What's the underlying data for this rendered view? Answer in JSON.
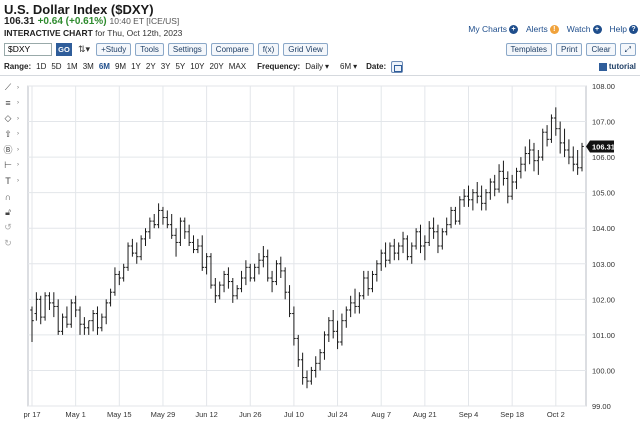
{
  "header": {
    "title": "U.S. Dollar Index ($DXY)",
    "last": "106.31",
    "change": "+0.64 (+0.61%)",
    "time": "10:40 ET [ICE/US]",
    "subtitle_bold": "INTERACTIVE CHART",
    "subtitle_date": "for Thu, Oct 12th, 2023",
    "links": {
      "my_charts": "My Charts",
      "alerts": "Alerts",
      "watch": "Watch",
      "help": "Help"
    }
  },
  "toolbar": {
    "symbol": "$DXY",
    "go": "GO",
    "study": "+Study",
    "tools": "Tools",
    "settings": "Settings",
    "compare": "Compare",
    "fx": "f(x)",
    "grid_view": "Grid View",
    "templates": "Templates",
    "print": "Print",
    "clear": "Clear"
  },
  "range": {
    "label": "Range:",
    "options": [
      "1D",
      "5D",
      "1M",
      "3M",
      "6M",
      "9M",
      "1Y",
      "2Y",
      "3Y",
      "5Y",
      "10Y",
      "20Y",
      "MAX"
    ],
    "active": "6M",
    "frequency_label": "Frequency:",
    "frequency": "Daily",
    "period": "6M",
    "date_label": "Date:",
    "tutorial": "tutorial"
  },
  "chart_data": {
    "type": "ohlc",
    "current_price_label": "106.31",
    "ylim": [
      99.0,
      108.0
    ],
    "y_ticks": [
      "99.00",
      "100.00",
      "101.00",
      "102.00",
      "103.00",
      "104.00",
      "105.00",
      "106.00",
      "107.00",
      "108.00"
    ],
    "x_tick_labels": [
      "pr 17",
      "May 1",
      "May 15",
      "May 29",
      "Jun 12",
      "Jun 26",
      "Jul 10",
      "Jul 24",
      "Aug 7",
      "Aug 21",
      "Sep 4",
      "Sep 18",
      "Oct 2"
    ],
    "x_tick_index": [
      0,
      10,
      20,
      30,
      40,
      50,
      60,
      70,
      80,
      90,
      100,
      110,
      120
    ],
    "bars": [
      [
        101.7,
        101.8,
        100.8,
        101.4
      ],
      [
        101.6,
        102.2,
        101.4,
        102.0
      ],
      [
        102.0,
        102.1,
        101.3,
        101.5
      ],
      [
        101.5,
        102.2,
        101.4,
        102.1
      ],
      [
        102.1,
        102.2,
        101.7,
        101.9
      ],
      [
        101.9,
        102.2,
        101.5,
        101.8
      ],
      [
        101.8,
        102.0,
        101.0,
        101.1
      ],
      [
        101.1,
        101.6,
        101.0,
        101.5
      ],
      [
        101.5,
        101.8,
        101.2,
        101.3
      ],
      [
        101.3,
        102.0,
        101.2,
        101.9
      ],
      [
        101.9,
        102.1,
        101.5,
        101.7
      ],
      [
        101.7,
        101.8,
        101.0,
        101.3
      ],
      [
        101.3,
        101.5,
        101.0,
        101.2
      ],
      [
        101.2,
        101.4,
        101.0,
        101.4
      ],
      [
        101.4,
        101.7,
        101.1,
        101.6
      ],
      [
        101.6,
        101.8,
        101.0,
        101.2
      ],
      [
        101.2,
        101.6,
        101.1,
        101.5
      ],
      [
        101.5,
        102.0,
        101.3,
        101.9
      ],
      [
        101.9,
        102.3,
        101.8,
        102.2
      ],
      [
        102.2,
        102.9,
        102.1,
        102.7
      ],
      [
        102.7,
        102.8,
        102.4,
        102.6
      ],
      [
        102.6,
        103.0,
        102.5,
        102.9
      ],
      [
        102.9,
        103.6,
        102.8,
        103.5
      ],
      [
        103.5,
        103.7,
        103.2,
        103.3
      ],
      [
        103.3,
        103.6,
        103.0,
        103.2
      ],
      [
        103.2,
        103.8,
        103.1,
        103.7
      ],
      [
        103.7,
        104.0,
        103.5,
        103.9
      ],
      [
        103.9,
        104.3,
        103.7,
        104.2
      ],
      [
        104.2,
        104.4,
        104.0,
        104.1
      ],
      [
        104.1,
        104.7,
        104.0,
        104.5
      ],
      [
        104.5,
        104.6,
        104.1,
        104.3
      ],
      [
        104.3,
        104.5,
        104.0,
        104.1
      ],
      [
        104.1,
        104.4,
        103.7,
        103.8
      ],
      [
        103.8,
        104.0,
        103.2,
        103.6
      ],
      [
        103.6,
        104.3,
        103.5,
        104.2
      ],
      [
        104.2,
        104.3,
        103.7,
        103.9
      ],
      [
        103.9,
        104.1,
        103.5,
        103.6
      ],
      [
        103.6,
        103.8,
        103.3,
        103.4
      ],
      [
        103.4,
        103.7,
        103.3,
        103.5
      ],
      [
        103.5,
        103.8,
        102.8,
        102.9
      ],
      [
        102.9,
        103.3,
        102.7,
        103.2
      ],
      [
        103.2,
        103.3,
        102.3,
        102.4
      ],
      [
        102.4,
        102.6,
        101.9,
        102.1
      ],
      [
        102.1,
        102.5,
        102.0,
        102.4
      ],
      [
        102.4,
        102.8,
        102.2,
        102.7
      ],
      [
        102.7,
        102.9,
        102.3,
        102.5
      ],
      [
        102.5,
        102.6,
        101.9,
        102.1
      ],
      [
        102.1,
        102.4,
        102.0,
        102.3
      ],
      [
        102.3,
        102.8,
        102.2,
        102.6
      ],
      [
        102.6,
        103.1,
        102.4,
        102.9
      ],
      [
        102.9,
        103.0,
        102.5,
        102.6
      ],
      [
        102.6,
        103.0,
        102.5,
        102.9
      ],
      [
        102.9,
        103.3,
        102.7,
        103.1
      ],
      [
        103.1,
        103.5,
        102.9,
        103.2
      ],
      [
        103.2,
        103.4,
        102.5,
        102.6
      ],
      [
        102.6,
        102.8,
        102.2,
        102.5
      ],
      [
        102.5,
        103.1,
        102.4,
        103.0
      ],
      [
        103.0,
        103.2,
        102.6,
        102.8
      ],
      [
        102.8,
        102.9,
        102.0,
        102.2
      ],
      [
        102.2,
        102.4,
        101.5,
        101.6
      ],
      [
        101.6,
        101.8,
        100.7,
        100.9
      ],
      [
        100.9,
        101.0,
        100.1,
        100.3
      ],
      [
        100.3,
        100.5,
        99.6,
        99.8
      ],
      [
        99.8,
        100.0,
        99.5,
        99.7
      ],
      [
        99.7,
        100.1,
        99.6,
        100.0
      ],
      [
        100.0,
        100.4,
        99.8,
        100.2
      ],
      [
        100.2,
        100.6,
        100.0,
        100.5
      ],
      [
        100.5,
        101.1,
        100.3,
        101.0
      ],
      [
        101.0,
        101.5,
        100.8,
        101.4
      ],
      [
        101.4,
        101.7,
        100.9,
        101.1
      ],
      [
        101.1,
        101.4,
        100.6,
        100.8
      ],
      [
        100.8,
        101.6,
        100.7,
        101.4
      ],
      [
        101.4,
        101.8,
        101.2,
        101.7
      ],
      [
        101.7,
        102.1,
        101.5,
        101.9
      ],
      [
        101.9,
        102.3,
        101.6,
        101.8
      ],
      [
        101.8,
        102.2,
        101.6,
        102.1
      ],
      [
        102.1,
        102.8,
        102.0,
        102.6
      ],
      [
        102.6,
        102.8,
        102.1,
        102.3
      ],
      [
        102.3,
        102.8,
        102.2,
        102.7
      ],
      [
        102.7,
        103.1,
        102.5,
        103.0
      ],
      [
        103.0,
        103.4,
        102.8,
        103.3
      ],
      [
        103.3,
        103.6,
        102.9,
        103.1
      ],
      [
        103.1,
        103.6,
        103.0,
        103.5
      ],
      [
        103.5,
        103.7,
        103.1,
        103.3
      ],
      [
        103.3,
        103.6,
        103.1,
        103.5
      ],
      [
        103.5,
        103.9,
        103.3,
        103.7
      ],
      [
        103.7,
        103.8,
        103.1,
        103.2
      ],
      [
        103.2,
        103.6,
        103.0,
        103.5
      ],
      [
        103.5,
        104.0,
        103.4,
        103.9
      ],
      [
        103.9,
        104.1,
        103.3,
        103.5
      ],
      [
        103.5,
        103.8,
        103.1,
        103.6
      ],
      [
        103.6,
        104.2,
        103.5,
        104.0
      ],
      [
        104.0,
        104.3,
        103.7,
        103.9
      ],
      [
        103.9,
        104.1,
        103.3,
        103.5
      ],
      [
        103.5,
        104.0,
        103.4,
        103.9
      ],
      [
        103.9,
        104.3,
        103.8,
        104.1
      ],
      [
        104.1,
        104.6,
        104.0,
        104.5
      ],
      [
        104.5,
        104.6,
        104.1,
        104.2
      ],
      [
        104.2,
        104.9,
        104.1,
        104.8
      ],
      [
        104.8,
        105.1,
        104.6,
        104.9
      ],
      [
        104.9,
        105.2,
        104.6,
        104.8
      ],
      [
        104.8,
        105.1,
        104.5,
        105.0
      ],
      [
        105.0,
        105.3,
        104.7,
        104.9
      ],
      [
        104.9,
        105.2,
        104.5,
        104.7
      ],
      [
        104.7,
        105.1,
        104.5,
        105.0
      ],
      [
        105.0,
        105.4,
        104.8,
        105.3
      ],
      [
        105.3,
        105.5,
        104.9,
        105.1
      ],
      [
        105.1,
        105.8,
        105.0,
        105.6
      ],
      [
        105.6,
        105.9,
        105.2,
        105.4
      ],
      [
        105.4,
        105.6,
        104.7,
        104.9
      ],
      [
        104.9,
        105.5,
        104.8,
        105.3
      ],
      [
        105.3,
        105.7,
        105.1,
        105.6
      ],
      [
        105.6,
        106.0,
        105.4,
        105.8
      ],
      [
        105.8,
        106.3,
        105.6,
        106.1
      ],
      [
        106.1,
        106.5,
        105.8,
        106.2
      ],
      [
        106.2,
        106.4,
        105.6,
        105.9
      ],
      [
        105.9,
        106.2,
        105.5,
        106.0
      ],
      [
        106.0,
        106.8,
        105.9,
        106.7
      ],
      [
        106.7,
        106.9,
        106.3,
        106.5
      ],
      [
        106.5,
        107.2,
        106.4,
        107.1
      ],
      [
        107.1,
        107.4,
        106.6,
        106.8
      ],
      [
        106.8,
        107.0,
        106.1,
        106.4
      ],
      [
        106.4,
        106.8,
        106.0,
        106.2
      ],
      [
        106.2,
        106.5,
        105.8,
        106.0
      ],
      [
        106.0,
        106.3,
        105.6,
        105.8
      ],
      [
        105.8,
        106.2,
        105.5,
        105.7
      ],
      [
        105.7,
        106.4,
        105.6,
        106.3
      ]
    ]
  }
}
